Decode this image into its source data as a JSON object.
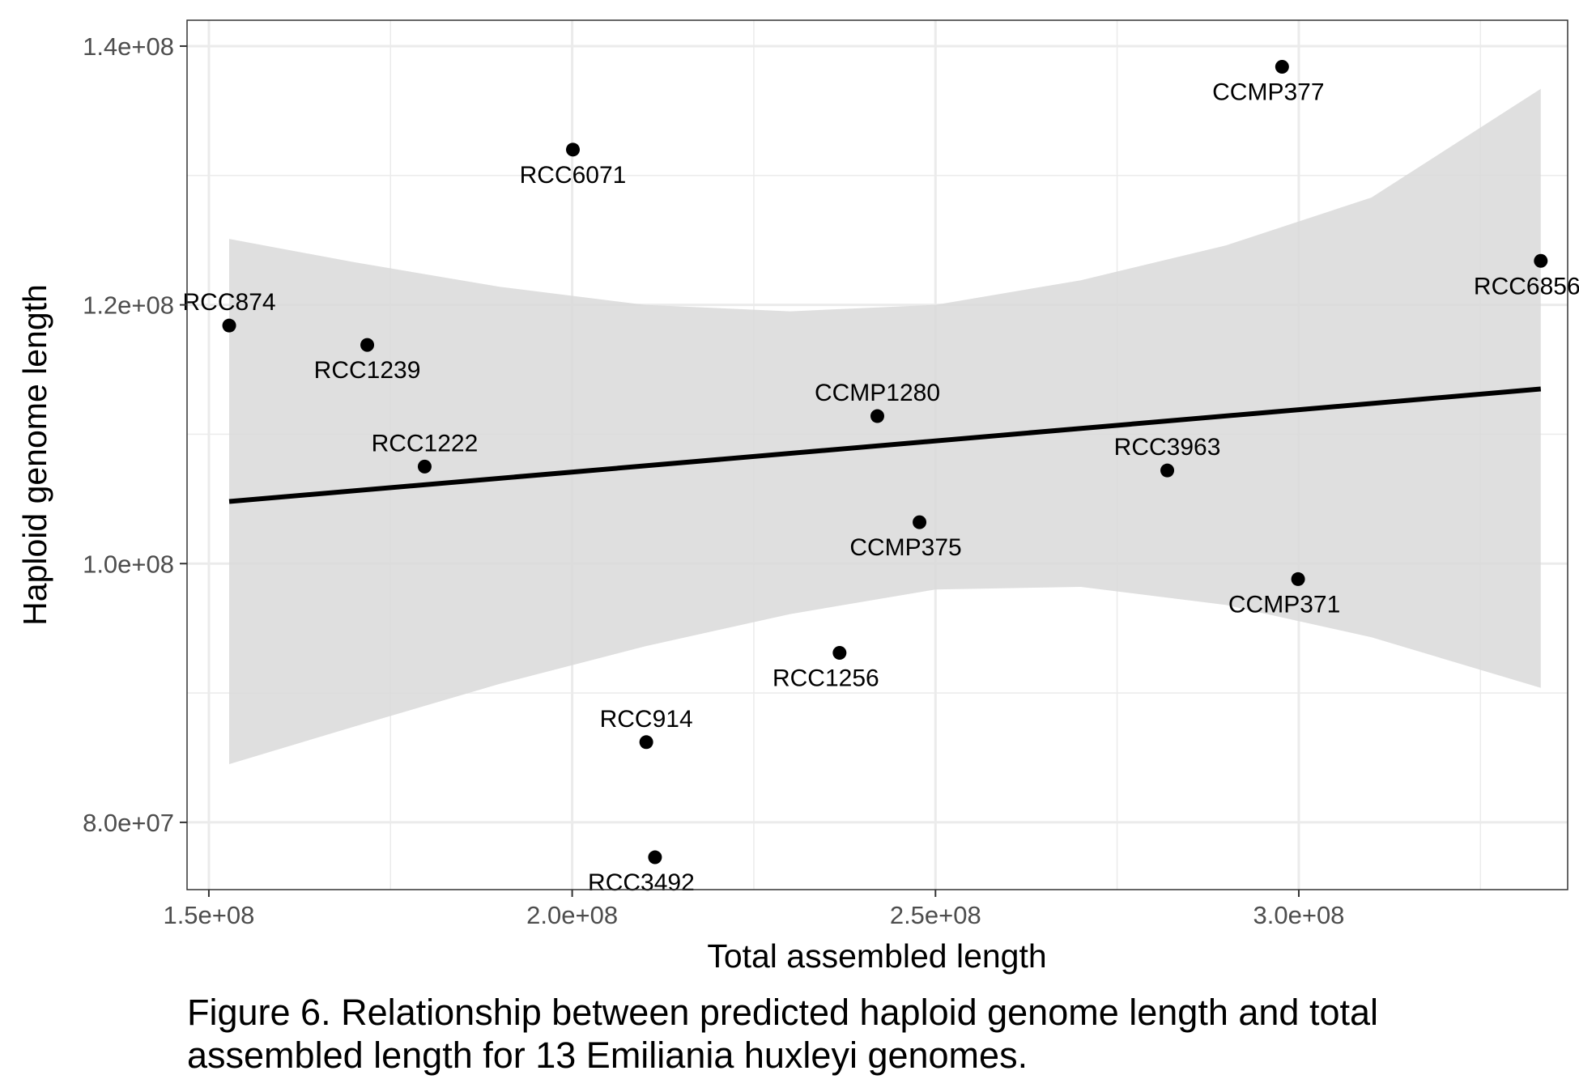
{
  "caption": "Figure 6. Relationship between predicted haploid genome length and total assembled length for 13 Emiliania huxleyi genomes.",
  "chart_data": {
    "type": "scatter",
    "xlabel": "Total assembled length",
    "ylabel": "Haploid genome length",
    "xlim": [
      147000000,
      337000000
    ],
    "ylim": [
      74800000,
      142000000
    ],
    "x_ticks": [
      150000000,
      200000000,
      250000000,
      300000000
    ],
    "x_tick_labels": [
      "1.5e+08",
      "2.0e+08",
      "2.5e+08",
      "3.0e+08"
    ],
    "y_ticks": [
      80000000,
      100000000,
      120000000,
      140000000
    ],
    "y_tick_labels": [
      "8.0e+07",
      "1.0e+08",
      "1.2e+08",
      "1.4e+08"
    ],
    "x_minor_ticks": [
      175000000,
      225000000,
      275000000,
      325000000
    ],
    "y_minor_ticks": [
      90000000,
      110000000,
      130000000
    ],
    "grid": true,
    "points": [
      {
        "label": "RCC874",
        "x": 152800000,
        "y": 118400000,
        "label_pos": "above"
      },
      {
        "label": "RCC1239",
        "x": 171800000,
        "y": 116900000,
        "label_pos": "below"
      },
      {
        "label": "RCC1222",
        "x": 179700000,
        "y": 107500000,
        "label_pos": "above"
      },
      {
        "label": "RCC6071",
        "x": 200100000,
        "y": 132000000,
        "label_pos": "below"
      },
      {
        "label": "RCC914",
        "x": 210200000,
        "y": 86200000,
        "label_pos": "above"
      },
      {
        "label": "RCC3492",
        "x": 211400000,
        "y": 77300000,
        "label_pos": "below-left"
      },
      {
        "label": "RCC1256",
        "x": 236800000,
        "y": 93100000,
        "label_pos": "below-left"
      },
      {
        "label": "CCMP1280",
        "x": 242000000,
        "y": 111400000,
        "label_pos": "above"
      },
      {
        "label": "CCMP375",
        "x": 247800000,
        "y": 103200000,
        "label_pos": "below-left"
      },
      {
        "label": "RCC3963",
        "x": 281900000,
        "y": 107200000,
        "label_pos": "above"
      },
      {
        "label": "CCMP377",
        "x": 297700000,
        "y": 138400000,
        "label_pos": "below-left"
      },
      {
        "label": "CCMP371",
        "x": 299900000,
        "y": 98800000,
        "label_pos": "below-left"
      },
      {
        "label": "RCC6856",
        "x": 333300000,
        "y": 123400000,
        "label_pos": "below-left"
      }
    ],
    "trend_line": {
      "x": [
        152800000,
        333300000
      ],
      "y": [
        104800000,
        113500000
      ]
    },
    "confidence_band": {
      "x": [
        152800000,
        170000000,
        190000000,
        210000000,
        230000000,
        250000000,
        270000000,
        290000000,
        310000000,
        333300000
      ],
      "upper": [
        125100000,
        123300000,
        121400000,
        120000000,
        119500000,
        120000000,
        121900000,
        124600000,
        128300000,
        136700000
      ],
      "lower": [
        84500000,
        87400000,
        90700000,
        93600000,
        96100000,
        98000000,
        98200000,
        96800000,
        94300000,
        90400000
      ]
    },
    "colors": {
      "point": "#000000",
      "line": "#000000",
      "band": "#d9d9d9",
      "grid": "#ebebeb",
      "axis": "#333333",
      "tick_label": "#4d4d4d"
    }
  }
}
